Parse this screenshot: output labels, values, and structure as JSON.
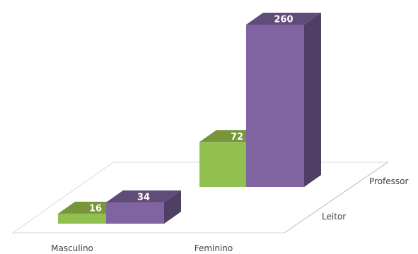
{
  "chart_data": {
    "type": "bar",
    "style": "3d-column",
    "categories": [
      "Masculino",
      "Feminino"
    ],
    "depth_categories": [
      "Leitor",
      "Professor"
    ],
    "series": [
      {
        "name": "Leitor",
        "values": [
          16,
          34
        ]
      },
      {
        "name": "Professor",
        "values": [
          72,
          260
        ]
      }
    ],
    "colors": {
      "Masculino": {
        "front": "#92c050",
        "top": "#77963a",
        "side": "#667f34"
      },
      "Feminino": {
        "front": "#8064a2",
        "top": "#604b79",
        "side": "#4f3f65"
      }
    },
    "floor_color": "#d9d9d9",
    "ylim": [
      0,
      260
    ],
    "grid": false,
    "legend": "none"
  }
}
